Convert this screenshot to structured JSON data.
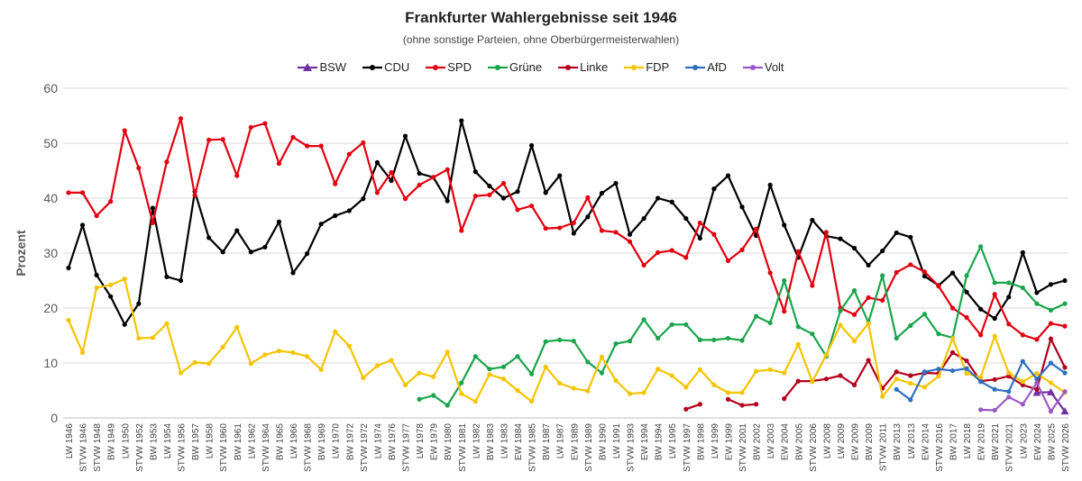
{
  "chart_data": {
    "type": "line",
    "title": "Frankfurter Wahlergebnisse seit 1946",
    "subtitle": "(ohne sonstige Parteien, ohne Oberbürgermeisterwahlen)",
    "ylabel": "Prozent",
    "ylim": [
      0,
      60
    ],
    "yticks": [
      "0",
      "10",
      "20",
      "30",
      "40",
      "50",
      "60"
    ],
    "grid": true,
    "legend_position": "top",
    "categories": [
      "LW 1946",
      "STVW 1946",
      "STVW 1948",
      "BW 1949",
      "LW 1950",
      "STVW 1952",
      "BW 1953",
      "LW 1954",
      "STVW 1956",
      "BW 1957",
      "LW 1958",
      "STVW 1960",
      "BW 1961",
      "LW 1962",
      "STVW 1964",
      "BW 1965",
      "LW 1966",
      "STVW 1968",
      "BW 1969",
      "LW 1970",
      "BW 1972",
      "STVW 1972",
      "LW 1974",
      "BW 1976",
      "STVW 1977",
      "LW 1978",
      "EW 1979",
      "BW 1980",
      "STVW 1981",
      "LW 1982",
      "BW 1983",
      "LW 1983",
      "EW 1984",
      "STVW 1985",
      "BW 1987",
      "LW 1987",
      "EW 1989",
      "STVW 1989",
      "BW 1990",
      "LW 1991",
      "STVW 1993",
      "EW 1994",
      "BW 1994",
      "LW 1995",
      "STVW 1997",
      "BW 1998",
      "LW 1999",
      "EW 1999",
      "STVW 2001",
      "BW 2002",
      "LW 2003",
      "EW 2004",
      "BW 2005",
      "STVW 2006",
      "LW 2008",
      "LW 2009",
      "EW 2009",
      "BW 2009",
      "STVW 2011",
      "BW 2013",
      "LW 2013",
      "EW 2014",
      "STVW 2016",
      "BW 2017",
      "LW 2018",
      "EW 2019",
      "BW 2021",
      "STVW 2021",
      "LW 2023",
      "EW 2024",
      "BW 2025",
      "STVW 2026"
    ],
    "series": [
      {
        "name": "BSW",
        "color": "#7030a0",
        "marker": "triangle",
        "values": [
          null,
          null,
          null,
          null,
          null,
          null,
          null,
          null,
          null,
          null,
          null,
          null,
          null,
          null,
          null,
          null,
          null,
          null,
          null,
          null,
          null,
          null,
          null,
          null,
          null,
          null,
          null,
          null,
          null,
          null,
          null,
          null,
          null,
          null,
          null,
          null,
          null,
          null,
          null,
          null,
          null,
          null,
          null,
          null,
          null,
          null,
          null,
          null,
          null,
          null,
          null,
          null,
          null,
          null,
          null,
          null,
          null,
          null,
          null,
          null,
          null,
          null,
          null,
          null,
          null,
          null,
          null,
          null,
          null,
          4.6,
          4.7,
          1.2
        ]
      },
      {
        "name": "CDU",
        "color": "#000000",
        "marker": "circle",
        "values": [
          27.3,
          35.1,
          26.0,
          22.1,
          17.0,
          20.8,
          38.2,
          25.7,
          25.0,
          41.2,
          32.8,
          30.2,
          34.1,
          30.2,
          31.1,
          35.7,
          26.4,
          29.9,
          35.3,
          36.8,
          37.7,
          39.9,
          46.5,
          43.2,
          51.3,
          44.5,
          43.8,
          39.5,
          54.1,
          44.8,
          42.2,
          40.0,
          41.2,
          49.6,
          41.0,
          44.1,
          33.6,
          36.6,
          40.9,
          42.7,
          33.4,
          36.3,
          40.0,
          39.3,
          36.3,
          32.7,
          41.7,
          44.1,
          38.4,
          33.2,
          42.4,
          35.1,
          29.2,
          36.0,
          33.1,
          32.6,
          30.9,
          27.8,
          30.4,
          33.7,
          32.9,
          25.8,
          24.1,
          26.4,
          22.9,
          19.8,
          18.1,
          22.0,
          30.1,
          22.8,
          24.3,
          25.0
        ]
      },
      {
        "name": "SPD",
        "color": "#e3000f",
        "marker": "circle",
        "values": [
          41.0,
          41.0,
          36.8,
          39.4,
          52.3,
          45.5,
          35.5,
          46.6,
          54.5,
          40.5,
          50.6,
          50.7,
          44.1,
          52.9,
          53.6,
          46.3,
          51.1,
          49.5,
          49.5,
          42.6,
          48.0,
          50.1,
          41.0,
          44.7,
          39.9,
          42.4,
          43.8,
          45.2,
          34.1,
          40.4,
          40.6,
          42.7,
          37.9,
          38.6,
          34.5,
          34.6,
          35.5,
          40.1,
          34.1,
          33.8,
          32.1,
          27.8,
          30.1,
          30.5,
          29.2,
          35.5,
          33.4,
          28.6,
          30.6,
          34.4,
          26.4,
          19.4,
          30.3,
          24.1,
          33.8,
          20.0,
          18.8,
          21.9,
          21.4,
          26.5,
          27.9,
          26.6,
          24.0,
          20.0,
          18.3,
          15.1,
          22.5,
          17.1,
          15.1,
          14.3,
          17.2,
          16.7
        ]
      },
      {
        "name": "Grüne",
        "color": "#1aa54c",
        "marker": "circle",
        "values": [
          null,
          null,
          null,
          null,
          null,
          null,
          null,
          null,
          null,
          null,
          null,
          null,
          null,
          null,
          null,
          null,
          null,
          null,
          null,
          null,
          null,
          null,
          null,
          null,
          null,
          3.4,
          4.1,
          2.3,
          6.4,
          11.2,
          8.9,
          9.3,
          11.2,
          8.0,
          13.9,
          14.2,
          14.0,
          10.2,
          8.2,
          13.5,
          14.0,
          17.9,
          14.5,
          17.0,
          17.0,
          14.2,
          14.2,
          14.5,
          14.1,
          18.5,
          17.3,
          25.0,
          16.6,
          15.3,
          11.2,
          19.5,
          23.2,
          17.4,
          25.9,
          14.5,
          16.8,
          18.9,
          15.3,
          14.6,
          25.9,
          31.2,
          24.6,
          24.6,
          23.7,
          20.8,
          19.6,
          20.8
        ]
      },
      {
        "name": "Linke",
        "color": "#b3001b",
        "marker": "circle",
        "values": [
          null,
          null,
          null,
          null,
          null,
          null,
          null,
          null,
          null,
          null,
          null,
          null,
          null,
          null,
          null,
          null,
          null,
          null,
          null,
          null,
          null,
          null,
          null,
          null,
          null,
          null,
          null,
          null,
          null,
          null,
          null,
          null,
          null,
          null,
          null,
          null,
          null,
          null,
          null,
          null,
          null,
          null,
          null,
          null,
          1.6,
          2.5,
          null,
          3.4,
          2.3,
          2.5,
          null,
          3.5,
          6.7,
          6.7,
          7.1,
          7.7,
          6.0,
          10.5,
          5.4,
          8.4,
          7.7,
          8.2,
          8.1,
          11.9,
          10.4,
          6.7,
          7.0,
          7.6,
          6.0,
          5.2,
          14.4,
          9.2
        ]
      },
      {
        "name": "FDP",
        "color": "#f5c400",
        "marker": "circle",
        "values": [
          17.8,
          11.9,
          23.7,
          24.2,
          25.3,
          14.5,
          14.6,
          17.2,
          8.2,
          10.1,
          9.9,
          12.9,
          16.5,
          9.9,
          11.5,
          12.2,
          11.9,
          11.2,
          8.8,
          15.7,
          13.1,
          7.3,
          9.5,
          10.5,
          6.0,
          8.2,
          7.5,
          12.0,
          4.4,
          3.0,
          7.9,
          7.1,
          5.0,
          3.0,
          9.3,
          6.3,
          5.4,
          4.9,
          11.1,
          6.8,
          4.4,
          4.6,
          8.9,
          7.7,
          5.6,
          8.8,
          6.0,
          4.6,
          4.6,
          8.5,
          8.8,
          8.2,
          13.4,
          6.6,
          11.5,
          16.9,
          14.0,
          17.2,
          3.9,
          7.1,
          6.3,
          5.6,
          7.6,
          14.5,
          8.1,
          7.4,
          14.9,
          8.2,
          6.6,
          8.1,
          6.4,
          4.6
        ]
      },
      {
        "name": "AfD",
        "color": "#2e6fbf",
        "marker": "circle",
        "values": [
          null,
          null,
          null,
          null,
          null,
          null,
          null,
          null,
          null,
          null,
          null,
          null,
          null,
          null,
          null,
          null,
          null,
          null,
          null,
          null,
          null,
          null,
          null,
          null,
          null,
          null,
          null,
          null,
          null,
          null,
          null,
          null,
          null,
          null,
          null,
          null,
          null,
          null,
          null,
          null,
          null,
          null,
          null,
          null,
          null,
          null,
          null,
          null,
          null,
          null,
          null,
          null,
          null,
          null,
          null,
          null,
          null,
          null,
          null,
          5.2,
          3.3,
          8.4,
          8.9,
          8.6,
          9.0,
          6.6,
          5.2,
          4.8,
          10.3,
          7.1,
          10.0,
          8.2
        ]
      },
      {
        "name": "Volt",
        "color": "#9b59c4",
        "marker": "circle",
        "values": [
          null,
          null,
          null,
          null,
          null,
          null,
          null,
          null,
          null,
          null,
          null,
          null,
          null,
          null,
          null,
          null,
          null,
          null,
          null,
          null,
          null,
          null,
          null,
          null,
          null,
          null,
          null,
          null,
          null,
          null,
          null,
          null,
          null,
          null,
          null,
          null,
          null,
          null,
          null,
          null,
          null,
          null,
          null,
          null,
          null,
          null,
          null,
          null,
          null,
          null,
          null,
          null,
          null,
          null,
          null,
          null,
          null,
          null,
          null,
          null,
          null,
          null,
          null,
          null,
          null,
          1.5,
          1.4,
          3.8,
          2.5,
          6.4,
          1.2,
          4.8
        ]
      }
    ]
  }
}
